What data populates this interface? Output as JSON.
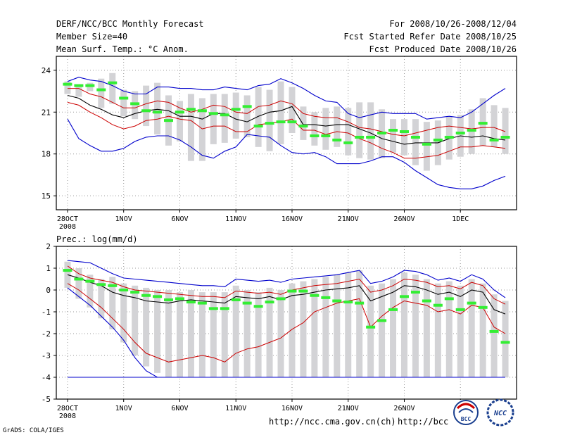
{
  "header": {
    "left": [
      "DERF/NCC/BCC Monthly Forecast",
      "Member Size=40",
      "Mean Surf. Temp.: °C Anom."
    ],
    "right": [
      "For 2008/10/26-2008/12/04",
      "Fcst Started Refer Date 2008/10/25",
      "Fcst Produced Date 2008/10/26"
    ]
  },
  "footer": {
    "credit": "GrADS: COLA/IGES",
    "url1": "http://ncc.cma.gov.cn(ch)",
    "url2": "http://bcc.c",
    "logo1": "BCC",
    "logo2": "NCC"
  },
  "colors": {
    "envelope": "#0000cc",
    "ensemble_mean": "#000000",
    "spread": "#cc0000",
    "median": "#33ee33",
    "box": "#d3d3d6",
    "grid": "#999999"
  },
  "chart_data": [
    {
      "type": "line",
      "title": "Mean Surf. Temp.: °C Anom.",
      "ylim": [
        14,
        25
      ],
      "yticks": [
        15,
        18,
        21,
        24
      ],
      "ytick_labels": [
        "15",
        "18",
        "21",
        "24"
      ],
      "x": [
        1,
        2,
        3,
        4,
        5,
        6,
        7,
        8,
        9,
        10,
        11,
        12,
        13,
        14,
        15,
        16,
        17,
        18,
        19,
        20,
        21,
        22,
        23,
        24,
        25,
        26,
        27,
        28,
        29,
        30,
        31,
        32,
        33,
        34,
        35,
        36,
        37,
        38,
        39,
        40
      ],
      "xlim": [
        0,
        41
      ],
      "xticks": [
        1,
        6,
        11,
        16,
        21,
        26,
        31,
        36
      ],
      "xtick_labels": [
        "28OCT",
        "1NOV",
        "6NOV",
        "11NOV",
        "16NOV",
        "21NOV",
        "26NOV",
        "1DEC"
      ],
      "xtick_sublabel": "2008",
      "series": [
        {
          "name": "max",
          "role": "envelope",
          "values": [
            23.2,
            23.5,
            23.3,
            23.2,
            22.9,
            22.5,
            22.3,
            22.3,
            22.8,
            22.8,
            22.7,
            22.7,
            22.6,
            22.6,
            22.8,
            22.7,
            22.6,
            22.9,
            23.0,
            23.4,
            23.1,
            22.7,
            22.2,
            21.8,
            21.7,
            20.9,
            20.6,
            20.8,
            21.0,
            20.9,
            20.9,
            20.9,
            20.5,
            20.6,
            20.7,
            20.6,
            21.0,
            21.6,
            22.2,
            22.7
          ]
        },
        {
          "name": "upper",
          "role": "spread",
          "values": [
            22.7,
            22.7,
            22.3,
            22.1,
            21.7,
            21.3,
            21.3,
            21.6,
            21.8,
            21.7,
            21.3,
            21.0,
            21.2,
            21.5,
            21.4,
            21.0,
            20.9,
            21.4,
            21.5,
            21.8,
            21.6,
            20.9,
            20.7,
            20.6,
            20.6,
            20.3,
            19.9,
            19.8,
            19.6,
            19.4,
            19.3,
            19.5,
            19.7,
            19.9,
            20.0,
            19.9,
            19.8,
            19.9,
            19.9,
            19.6
          ]
        },
        {
          "name": "mean",
          "role": "ensemble_mean",
          "values": [
            22.2,
            22.0,
            21.5,
            21.2,
            20.8,
            20.6,
            20.9,
            21.1,
            21.2,
            21.1,
            20.7,
            20.7,
            20.5,
            20.9,
            20.9,
            20.5,
            20.3,
            20.7,
            21.0,
            21.1,
            21.4,
            20.1,
            20.1,
            20.0,
            20.1,
            20.1,
            19.8,
            19.5,
            19.1,
            18.9,
            18.7,
            18.8,
            18.8,
            18.8,
            19.1,
            19.3,
            19.2,
            19.3,
            19.1,
            19.0
          ]
        },
        {
          "name": "lower",
          "role": "spread",
          "values": [
            21.7,
            21.5,
            21.0,
            20.6,
            20.1,
            19.8,
            20.0,
            20.4,
            20.5,
            20.7,
            20.5,
            20.4,
            19.8,
            20.0,
            20.0,
            19.6,
            19.6,
            20.1,
            20.2,
            20.3,
            20.5,
            19.7,
            19.7,
            19.4,
            19.6,
            19.5,
            19.1,
            18.8,
            18.4,
            18.1,
            17.7,
            17.7,
            17.8,
            17.9,
            18.2,
            18.5,
            18.5,
            18.6,
            18.5,
            18.4
          ]
        },
        {
          "name": "min",
          "role": "envelope",
          "values": [
            20.5,
            19.1,
            18.6,
            18.2,
            18.2,
            18.4,
            18.9,
            19.2,
            19.3,
            19.3,
            19.0,
            18.5,
            17.9,
            17.7,
            18.2,
            18.5,
            19.4,
            19.3,
            19.2,
            18.6,
            18.1,
            18.0,
            18.1,
            17.8,
            17.3,
            17.3,
            17.3,
            17.5,
            17.8,
            17.8,
            17.4,
            16.8,
            16.3,
            15.8,
            15.6,
            15.5,
            15.5,
            15.7,
            16.1,
            16.4
          ]
        },
        {
          "name": "median",
          "role": "median",
          "values": [
            23.0,
            22.9,
            22.9,
            22.6,
            23.1,
            22.0,
            21.6,
            21.1,
            21.0,
            20.4,
            21.0,
            21.2,
            21.1,
            20.9,
            20.8,
            21.2,
            21.4,
            20.0,
            20.2,
            20.3,
            20.3,
            20.0,
            19.3,
            19.3,
            19.0,
            18.8,
            19.2,
            19.2,
            19.5,
            19.7,
            19.6,
            19.2,
            18.7,
            19.0,
            19.2,
            19.5,
            19.7,
            20.2,
            19.0,
            19.2
          ]
        },
        {
          "name": "box_top",
          "role": "box",
          "values": [
            23.2,
            23.0,
            23.1,
            23.4,
            23.8,
            22.6,
            22.5,
            22.9,
            23.1,
            22.2,
            21.8,
            22.3,
            22.0,
            22.3,
            22.3,
            22.4,
            22.2,
            22.8,
            22.6,
            23.2,
            22.8,
            21.4,
            21.0,
            21.3,
            21.4,
            21.3,
            21.7,
            21.7,
            21.2,
            20.5,
            20.5,
            20.5,
            20.3,
            20.4,
            20.7,
            20.8,
            21.2,
            22.0,
            21.5,
            21.3
          ]
        },
        {
          "name": "box_bottom",
          "role": "box",
          "values": [
            22.3,
            22.1,
            22.5,
            21.3,
            21.6,
            20.7,
            20.5,
            20.0,
            19.4,
            18.6,
            18.9,
            17.5,
            17.5,
            18.7,
            18.8,
            19.1,
            19.2,
            18.5,
            18.2,
            18.7,
            19.5,
            19.0,
            18.6,
            18.3,
            18.5,
            17.9,
            17.7,
            17.6,
            17.7,
            18.1,
            17.9,
            17.2,
            16.8,
            17.2,
            17.6,
            17.8,
            18.0,
            18.6,
            18.5,
            18.0
          ]
        }
      ]
    },
    {
      "type": "line",
      "title": "Prec.: log(mm/d)",
      "ylim": [
        -5,
        2
      ],
      "yticks": [
        -5,
        -4,
        -3,
        -2,
        -1,
        0,
        1,
        2
      ],
      "ytick_labels": [
        "-5",
        "-4",
        "-3",
        "-2",
        "-1",
        "0",
        "1",
        "2"
      ],
      "x": [
        1,
        2,
        3,
        4,
        5,
        6,
        7,
        8,
        9,
        10,
        11,
        12,
        13,
        14,
        15,
        16,
        17,
        18,
        19,
        20,
        21,
        22,
        23,
        24,
        25,
        26,
        27,
        28,
        29,
        30,
        31,
        32,
        33,
        34,
        35,
        36,
        37,
        38,
        39,
        40
      ],
      "xlim": [
        0,
        41
      ],
      "xticks": [
        1,
        6,
        11,
        16,
        21,
        26,
        31,
        36
      ],
      "xtick_labels": [
        "28OCT",
        "1NOV",
        "6NOV",
        "11NOV",
        "16NOV",
        "21NOV",
        "26NOV",
        "1DEC"
      ],
      "xtick_sublabel": "2008",
      "series": [
        {
          "name": "max",
          "role": "envelope",
          "values": [
            1.35,
            1.3,
            1.25,
            1.0,
            0.75,
            0.55,
            0.5,
            0.45,
            0.4,
            0.35,
            0.3,
            0.25,
            0.2,
            0.2,
            0.15,
            0.5,
            0.45,
            0.4,
            0.45,
            0.35,
            0.5,
            0.55,
            0.6,
            0.65,
            0.7,
            0.8,
            0.9,
            0.3,
            0.4,
            0.6,
            0.9,
            0.85,
            0.7,
            0.45,
            0.55,
            0.4,
            0.7,
            0.5,
            0.0,
            -0.35
          ]
        },
        {
          "name": "upper",
          "role": "spread",
          "values": [
            1.1,
            0.75,
            0.55,
            0.45,
            0.35,
            0.15,
            0.0,
            -0.05,
            -0.1,
            -0.15,
            -0.2,
            -0.25,
            -0.3,
            -0.3,
            -0.35,
            -0.05,
            -0.1,
            -0.15,
            -0.1,
            -0.2,
            0.0,
            0.1,
            0.2,
            0.25,
            0.3,
            0.4,
            0.5,
            -0.1,
            0.0,
            0.2,
            0.5,
            0.45,
            0.35,
            0.15,
            0.2,
            0.05,
            0.35,
            0.2,
            -0.4,
            -0.65
          ]
        },
        {
          "name": "mean",
          "role": "ensemble_mean",
          "values": [
            0.7,
            0.55,
            0.35,
            0.2,
            -0.1,
            -0.25,
            -0.35,
            -0.5,
            -0.55,
            -0.6,
            -0.5,
            -0.45,
            -0.5,
            -0.55,
            -0.6,
            -0.3,
            -0.35,
            -0.4,
            -0.3,
            -0.45,
            -0.25,
            -0.2,
            -0.1,
            0.0,
            0.05,
            0.1,
            0.2,
            -0.5,
            -0.3,
            -0.1,
            0.2,
            0.15,
            0.0,
            -0.2,
            -0.1,
            -0.3,
            0.0,
            -0.1,
            -0.9,
            -1.1
          ]
        },
        {
          "name": "lower",
          "role": "spread",
          "values": [
            0.3,
            0.0,
            -0.4,
            -0.8,
            -1.3,
            -1.8,
            -2.4,
            -2.9,
            -3.1,
            -3.3,
            -3.2,
            -3.1,
            -3.0,
            -3.1,
            -3.3,
            -2.9,
            -2.7,
            -2.6,
            -2.4,
            -2.2,
            -1.8,
            -1.5,
            -1.0,
            -0.8,
            -0.6,
            -0.5,
            -0.4,
            -1.7,
            -1.2,
            -0.8,
            -0.5,
            -0.6,
            -0.7,
            -1.0,
            -0.9,
            -1.1,
            -0.7,
            -0.8,
            -1.7,
            -2.0
          ]
        },
        {
          "name": "min",
          "role": "envelope",
          "values": [
            0.1,
            -0.3,
            -0.7,
            -1.2,
            -1.7,
            -2.3,
            -3.1,
            -3.7,
            -4.0,
            -4.0,
            -4.0,
            -4.0,
            -4.0,
            -4.0,
            -4.0,
            -4.0,
            -4.0,
            -4.0,
            -4.0,
            -4.0,
            -4.0,
            -4.0,
            -4.0,
            -4.0,
            -4.0,
            -4.0,
            -4.0,
            -4.0,
            -4.0,
            -4.0,
            -4.0,
            -4.0,
            -4.0,
            -4.0,
            -4.0,
            -4.0,
            -4.0,
            -4.0,
            -4.0,
            -4.0
          ]
        },
        {
          "name": "median",
          "role": "median",
          "values": [
            0.9,
            0.5,
            0.4,
            0.25,
            0.2,
            0.0,
            -0.1,
            -0.25,
            -0.3,
            -0.45,
            -0.4,
            -0.55,
            -0.6,
            -0.85,
            -0.85,
            -0.45,
            -0.6,
            -0.75,
            -0.55,
            -0.4,
            -0.05,
            -0.05,
            -0.25,
            -0.35,
            -0.5,
            -0.55,
            -0.6,
            -1.7,
            -1.4,
            -0.9,
            -0.3,
            -0.1,
            -0.5,
            -0.7,
            -0.4,
            -0.9,
            -0.6,
            -0.8,
            -1.9,
            -2.4
          ]
        },
        {
          "name": "box_top",
          "role": "box",
          "values": [
            1.3,
            1.0,
            0.7,
            0.5,
            0.6,
            0.3,
            0.2,
            0.1,
            0.0,
            0.0,
            -0.1,
            0.0,
            -0.1,
            -0.1,
            -0.1,
            0.2,
            0.0,
            -0.1,
            0.1,
            0.0,
            0.3,
            0.4,
            0.5,
            0.6,
            0.7,
            0.8,
            0.9,
            0.2,
            0.3,
            0.5,
            0.8,
            0.7,
            0.5,
            0.3,
            0.4,
            0.2,
            0.5,
            0.3,
            -0.2,
            -0.5
          ]
        },
        {
          "name": "box_bottom",
          "role": "box",
          "values": [
            0.1,
            -0.4,
            -0.8,
            -1.3,
            -1.8,
            -2.4,
            -3.0,
            -3.5,
            -3.8,
            -4.0,
            -4.0,
            -4.0,
            -4.0,
            -4.0,
            -4.0,
            -4.0,
            -4.0,
            -4.0,
            -4.0,
            -4.0,
            -4.0,
            -4.0,
            -4.0,
            -4.0,
            -4.0,
            -4.0,
            -4.0,
            -4.0,
            -4.0,
            -4.0,
            -4.0,
            -4.0,
            -4.0,
            -4.0,
            -4.0,
            -4.0,
            -4.0,
            -4.0,
            -4.0,
            -4.0
          ]
        }
      ]
    }
  ]
}
